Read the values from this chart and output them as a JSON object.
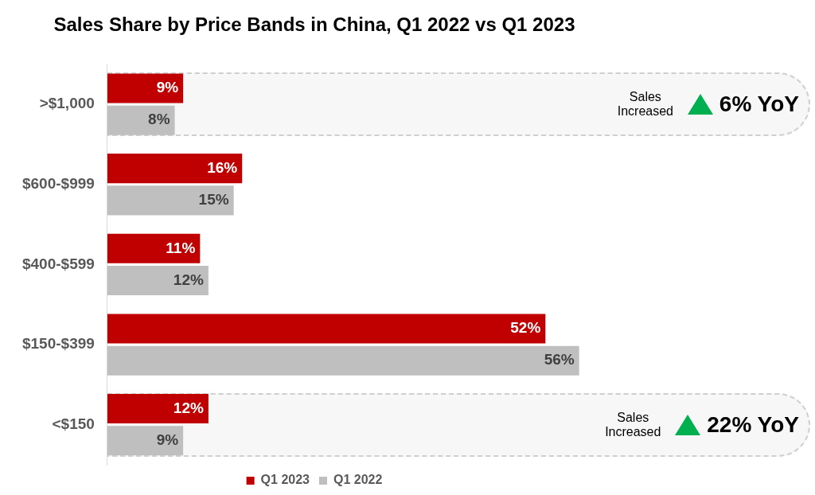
{
  "chart_data": {
    "type": "bar",
    "orientation": "horizontal",
    "title": "Sales Share by Price Bands in China, Q1 2022 vs Q1 2023",
    "categories": [
      ">$1,000",
      "$600-$999",
      "$400-$599",
      "$150-$399",
      "<$150"
    ],
    "series": [
      {
        "name": "Q1 2023",
        "color": "#c00000",
        "values": [
          9,
          16,
          11,
          52,
          12
        ],
        "value_labels": [
          "9%",
          "16%",
          "11%",
          "52%",
          "12%"
        ]
      },
      {
        "name": "Q1 2022",
        "color": "#bfbfbf",
        "values": [
          8,
          15,
          12,
          56,
          9
        ],
        "value_labels": [
          "8%",
          "15%",
          "12%",
          "56%",
          "9%"
        ]
      }
    ],
    "bands": [
      {
        "axis": "y",
        "from": ">$1,000",
        "to": ">$1,000",
        "color": "#f7f7f7"
      },
      {
        "axis": "y",
        "from": "<$150",
        "to": "<$150",
        "color": "#f7f7f7"
      }
    ],
    "annotations": [
      "Sales Increased",
      "6% YoY",
      "Sales Increased",
      "22% YoY"
    ],
    "legend": "bottom",
    "tick_labels": "y"
  }
}
